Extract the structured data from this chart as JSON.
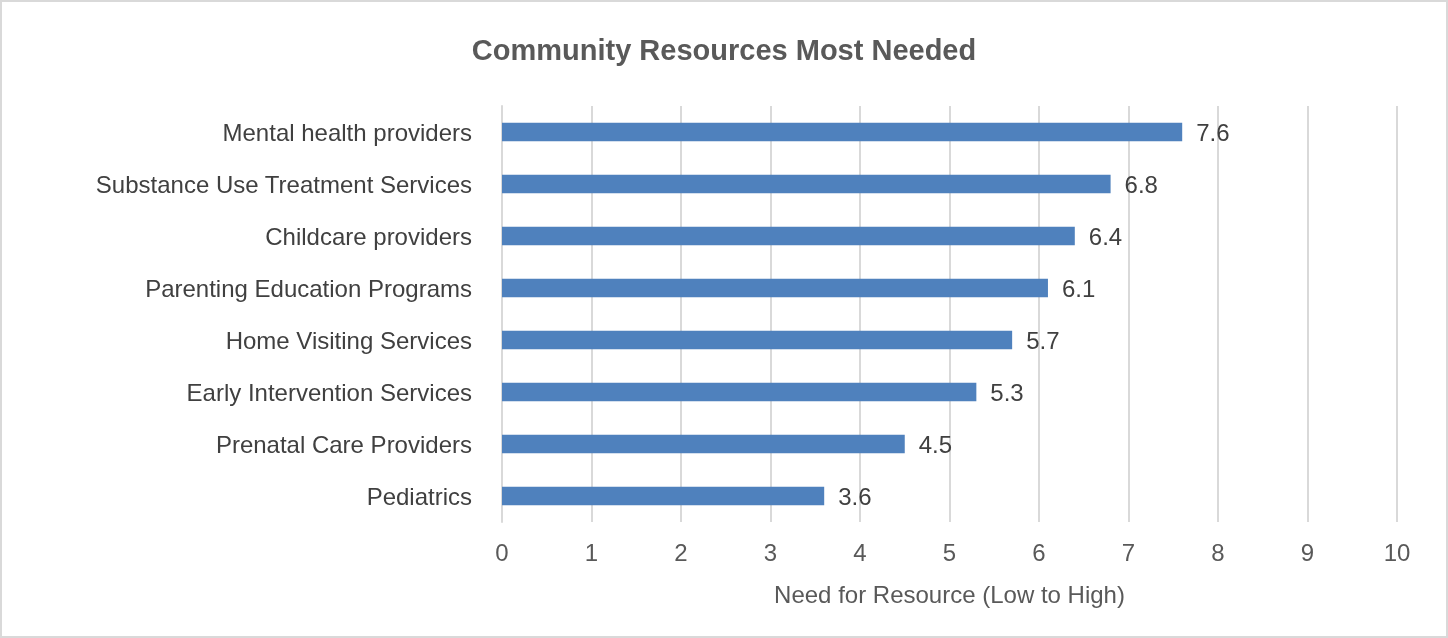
{
  "chart_data": {
    "type": "bar",
    "orientation": "horizontal",
    "title": "Community Resources Most Needed",
    "xlabel": "Need for Resource (Low to High)",
    "categories": [
      "Mental health providers",
      "Substance Use Treatment Services",
      "Childcare providers",
      "Parenting Education Programs",
      "Home Visiting Services",
      "Early Intervention Services",
      "Prenatal Care Providers",
      "Pediatrics"
    ],
    "values": [
      7.6,
      6.8,
      6.4,
      6.1,
      5.7,
      5.3,
      4.5,
      3.6
    ],
    "color": "#4f81bd",
    "xlim": [
      0,
      10
    ],
    "xticks": [
      0,
      1,
      2,
      3,
      4,
      5,
      6,
      7,
      8,
      9,
      10
    ],
    "grid": "x",
    "data_labels": true
  }
}
